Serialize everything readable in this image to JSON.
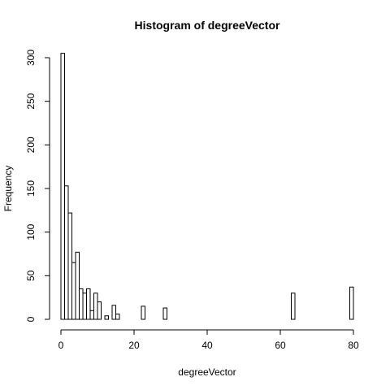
{
  "chart_data": {
    "type": "bar",
    "title": "Histogram of degreeVector",
    "xlabel": "degreeVector",
    "ylabel": "Frequency",
    "xlim": [
      0,
      80
    ],
    "ylim": [
      0,
      300
    ],
    "x_ticks": [
      "0",
      "20",
      "40",
      "60",
      "80"
    ],
    "y_ticks": [
      "0",
      "50",
      "100",
      "150",
      "200",
      "250",
      "300"
    ],
    "bar_color": "#ffffff",
    "edge_color": "#000000",
    "bin_width": 1,
    "bins": [
      {
        "start": 0,
        "end": 1,
        "value": 305
      },
      {
        "start": 1,
        "end": 2,
        "value": 153
      },
      {
        "start": 2,
        "end": 3,
        "value": 122
      },
      {
        "start": 3,
        "end": 4,
        "value": 65
      },
      {
        "start": 4,
        "end": 5,
        "value": 77
      },
      {
        "start": 5,
        "end": 6,
        "value": 35
      },
      {
        "start": 6,
        "end": 7,
        "value": 30
      },
      {
        "start": 7,
        "end": 8,
        "value": 35
      },
      {
        "start": 8,
        "end": 9,
        "value": 10
      },
      {
        "start": 9,
        "end": 10,
        "value": 30
      },
      {
        "start": 10,
        "end": 11,
        "value": 20
      },
      {
        "start": 11,
        "end": 12,
        "value": 0
      },
      {
        "start": 12,
        "end": 13,
        "value": 4
      },
      {
        "start": 13,
        "end": 14,
        "value": 0
      },
      {
        "start": 14,
        "end": 15,
        "value": 16
      },
      {
        "start": 15,
        "end": 16,
        "value": 6
      },
      {
        "start": 22,
        "end": 23,
        "value": 15
      },
      {
        "start": 28,
        "end": 29,
        "value": 13
      },
      {
        "start": 63,
        "end": 64,
        "value": 30
      },
      {
        "start": 79,
        "end": 80,
        "value": 37
      }
    ]
  }
}
